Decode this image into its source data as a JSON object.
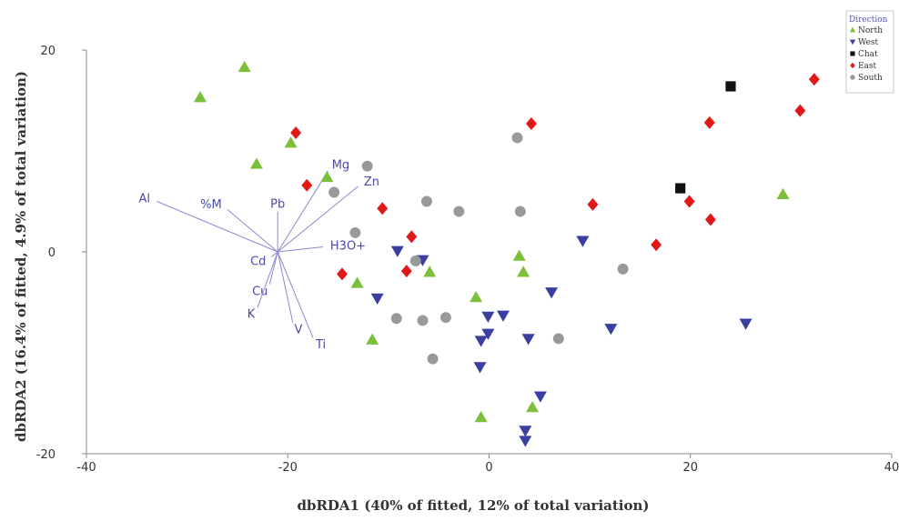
{
  "chart_data": {
    "type": "scatter",
    "title": "",
    "xlabel": "dbRDA1 (40% of fitted, 12% of total variation)",
    "ylabel": "dbRDA2 (16.4% of fitted, 4.9% of total variation)",
    "xlim": [
      -40,
      40
    ],
    "ylim": [
      -20,
      20
    ],
    "x_ticks": [
      -40,
      -20,
      0,
      20,
      40
    ],
    "y_ticks": [
      -20,
      0,
      20
    ],
    "grid": false,
    "legend": {
      "title": "Direction",
      "position": "top-right"
    },
    "series": [
      {
        "name": "North",
        "marker": "triangle-up",
        "color": "#7cbf3a",
        "points": [
          [
            -28.7,
            15.3
          ],
          [
            -24.3,
            18.3
          ],
          [
            -23.1,
            8.7
          ],
          [
            -19.7,
            10.8
          ],
          [
            -16.1,
            7.4
          ],
          [
            -13.1,
            -3.1
          ],
          [
            -11.6,
            -8.7
          ],
          [
            -5.9,
            -2.0
          ],
          [
            -1.3,
            -4.5
          ],
          [
            -0.8,
            -16.4
          ],
          [
            3.0,
            -0.4
          ],
          [
            3.4,
            -2.0
          ],
          [
            4.3,
            -15.4
          ],
          [
            29.2,
            5.7
          ]
        ]
      },
      {
        "name": "West",
        "marker": "triangle-down",
        "color": "#3a3fa0",
        "points": [
          [
            -11.1,
            -4.6
          ],
          [
            -9.1,
            0.1
          ],
          [
            -6.6,
            -0.8
          ],
          [
            -0.9,
            -11.4
          ],
          [
            -0.8,
            -8.8
          ],
          [
            -0.1,
            -6.4
          ],
          [
            -0.1,
            -8.1
          ],
          [
            1.4,
            -6.3
          ],
          [
            3.6,
            -17.7
          ],
          [
            3.6,
            -18.7
          ],
          [
            3.9,
            -8.6
          ],
          [
            5.1,
            -14.3
          ],
          [
            6.2,
            -4.0
          ],
          [
            9.3,
            1.1
          ],
          [
            12.1,
            -7.6
          ],
          [
            25.5,
            -7.1
          ]
        ]
      },
      {
        "name": "Chat",
        "marker": "square",
        "color": "#111111",
        "points": [
          [
            19.0,
            6.3
          ],
          [
            24.0,
            16.4
          ]
        ]
      },
      {
        "name": "East",
        "marker": "diamond",
        "color": "#e01818",
        "points": [
          [
            -19.2,
            11.8
          ],
          [
            -18.1,
            6.6
          ],
          [
            -14.6,
            -2.2
          ],
          [
            -10.6,
            4.3
          ],
          [
            -8.2,
            -1.9
          ],
          [
            -7.7,
            1.5
          ],
          [
            4.2,
            12.7
          ],
          [
            10.3,
            4.7
          ],
          [
            16.6,
            0.7
          ],
          [
            19.9,
            5.0
          ],
          [
            21.9,
            12.8
          ],
          [
            22.0,
            3.2
          ],
          [
            30.9,
            14.0
          ],
          [
            32.3,
            17.1
          ]
        ]
      },
      {
        "name": "South",
        "marker": "circle",
        "color": "#999999",
        "points": [
          [
            -15.4,
            5.9
          ],
          [
            -13.3,
            1.9
          ],
          [
            -12.1,
            8.5
          ],
          [
            -9.2,
            -6.6
          ],
          [
            -7.3,
            -0.9
          ],
          [
            -6.6,
            -6.8
          ],
          [
            -6.2,
            5.0
          ],
          [
            -5.6,
            -10.6
          ],
          [
            -4.3,
            -6.5
          ],
          [
            -3.0,
            4.0
          ],
          [
            2.8,
            11.3
          ],
          [
            3.1,
            4.0
          ],
          [
            6.9,
            -8.6
          ],
          [
            13.3,
            -1.7
          ]
        ]
      }
    ],
    "vectors": {
      "origin": [
        -21.0,
        0.0
      ],
      "items": [
        {
          "label": "Al",
          "end": [
            -33.0,
            5.0
          ]
        },
        {
          "label": "%M",
          "end": [
            -26.0,
            4.2
          ]
        },
        {
          "label": "Pb",
          "end": [
            -21.0,
            4.0
          ]
        },
        {
          "label": "Mg",
          "end": [
            -16.0,
            8.0
          ]
        },
        {
          "label": "Zn",
          "end": [
            -13.0,
            6.5
          ]
        },
        {
          "label": "H3O+",
          "end": [
            -16.5,
            0.5
          ]
        },
        {
          "label": "Cd",
          "end": [
            -21.6,
            -0.5
          ]
        },
        {
          "label": "Cu",
          "end": [
            -21.8,
            -3.2
          ]
        },
        {
          "label": "K",
          "end": [
            -23.0,
            -5.5
          ]
        },
        {
          "label": "V",
          "end": [
            -19.5,
            -7.0
          ]
        },
        {
          "label": "Ti",
          "end": [
            -17.5,
            -8.5
          ]
        }
      ]
    }
  }
}
